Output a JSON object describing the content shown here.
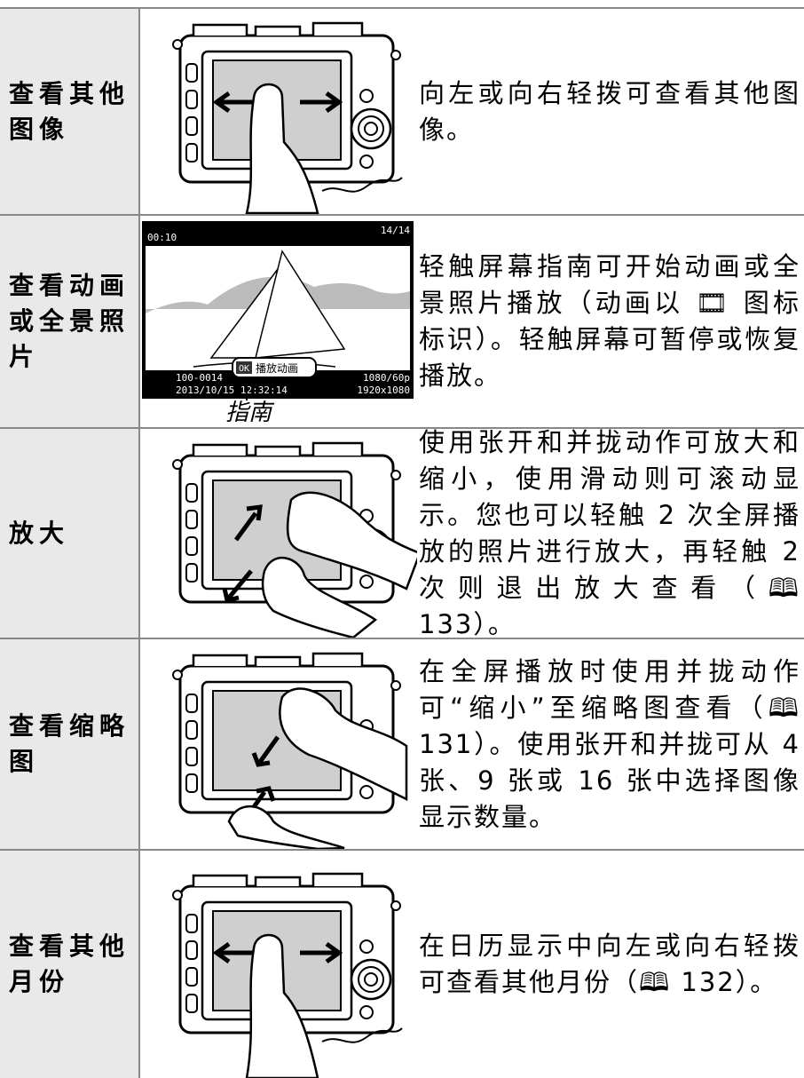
{
  "table": {
    "rows": [
      {
        "label": "查看其他图像",
        "description": "向左或向右轻拨可查看其他图像。"
      },
      {
        "label": "查看动画或全景照片",
        "description": "轻触屏幕指南可开始动画或全景照片播放（动画以 🎞 图标标识）。轻触屏幕可暂停或恢复播放。"
      },
      {
        "label": "放大",
        "description": "使用张开和并拢动作可放大和缩小，使用滑动则可滚动显示。您也可以轻触 2 次全屏播放的照片进行放大，再轻触 2 次则退出放大查看（🕮 133）。"
      },
      {
        "label": "查看缩略图",
        "description": "在全屏播放时使用并拢动作可“缩小”至缩略图查看（🕮 131）。使用张开和并拢可从 4 张、9 张或 16 张中选择图像显示数量。"
      },
      {
        "label": "查看其他月份",
        "description": "在日历显示中向左或向右轻拨可查看其他月份（🕮 132）。"
      }
    ]
  },
  "screen": {
    "frame": "14/14",
    "time": "00:10",
    "file": "100-0014",
    "date": "2013/10/15 12:32:14",
    "movie_mode": "1080/60p",
    "size": "1920x1080",
    "ok": "OK",
    "guide": "播放动画",
    "caption": "指南"
  }
}
